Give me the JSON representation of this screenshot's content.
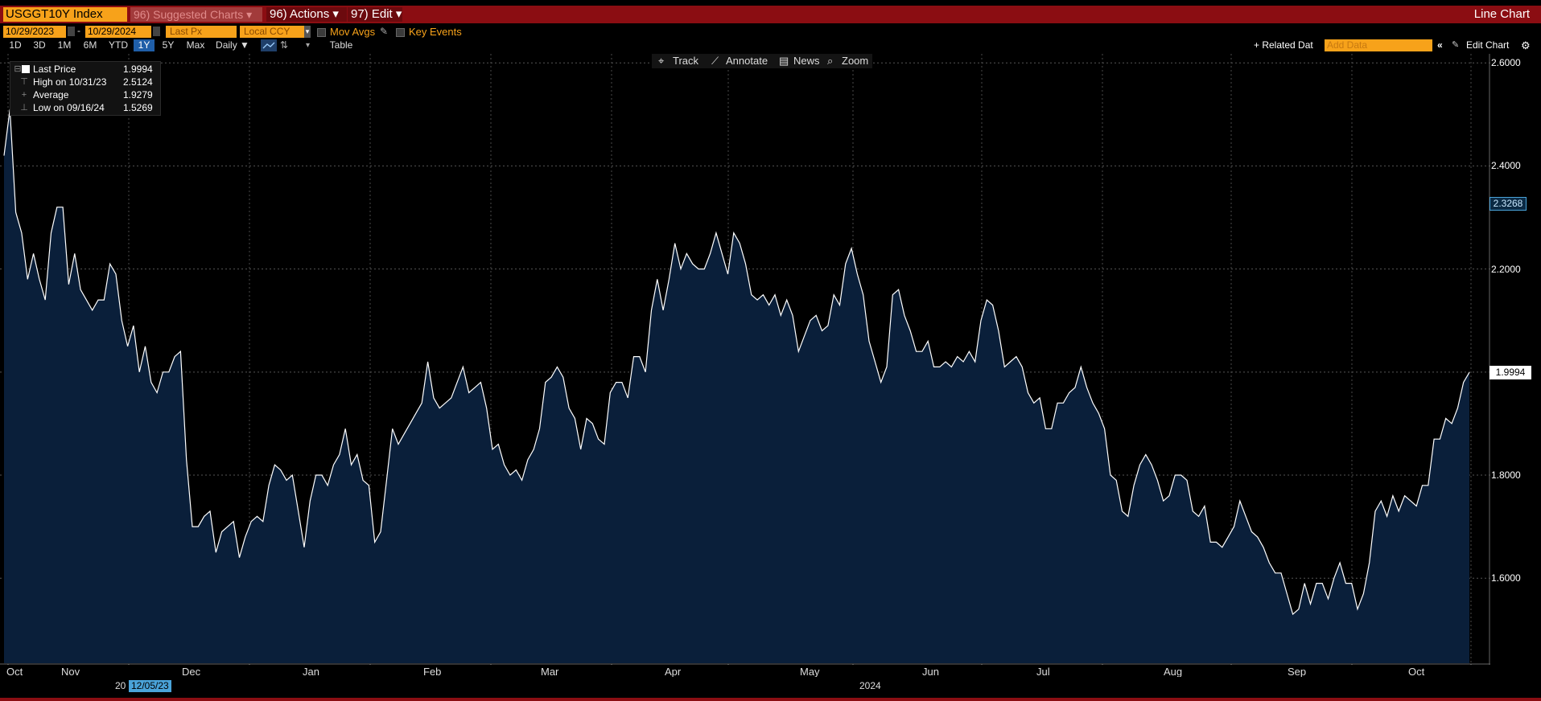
{
  "top_strip_text": "",
  "toolbar": {
    "ticker": "USGGT10Y Index",
    "suggested": "96) Suggested Charts ▾",
    "actions": "96) Actions ▾",
    "edit": "97) Edit ▾",
    "chart_type": "Line Chart",
    "start_date": "10/29/2023",
    "end_date": "10/29/2024",
    "field": "Last Px",
    "currency": "Local CCY",
    "mov_avgs": "Mov Avgs",
    "key_events": "Key Events",
    "ranges": [
      "1D",
      "3D",
      "1M",
      "6M",
      "YTD",
      "1Y",
      "5Y",
      "Max"
    ],
    "selected_range": "1Y",
    "frequency": "Daily ▼",
    "table": "Table",
    "related_data": "+ Related Dat",
    "add_data_placeholder": "Add Data",
    "edit_chart": "Edit Chart"
  },
  "controls": {
    "track": "Track",
    "annotate": "Annotate",
    "news": "News",
    "zoom": "Zoom"
  },
  "legend": {
    "last_label": "Last Price",
    "last_value": "1.9994",
    "high_label": "High on 10/31/23",
    "high_value": "2.5124",
    "avg_label": "Average",
    "avg_value": "1.9279",
    "low_label": "Low on 09/16/24",
    "low_value": "1.5269"
  },
  "colors": {
    "background": "#000000",
    "area_fill": "#0a1f3a",
    "line": "#ffffff",
    "toolbar_red": "#8b0d12",
    "orange": "#f7a21a"
  },
  "bottom": {
    "year_a_prefix": "20",
    "crosshair_date": "12/05/23",
    "year_b": "2024"
  },
  "chart_data": {
    "type": "area",
    "title": "USGGT10Y Index",
    "xlabel": "",
    "ylabel": "",
    "ylim": [
      1.435,
      2.605
    ],
    "yticks": [
      1.6,
      1.8,
      2.0,
      2.2,
      2.4,
      2.6
    ],
    "ytick_labels": [
      "1.6000",
      "1.8000",
      "2.0000",
      "2.2000",
      "2.4000",
      "2.6000"
    ],
    "xtick_labels": [
      "Oct",
      "Nov",
      "Dec",
      "Jan",
      "Feb",
      "Mar",
      "Apr",
      "May",
      "Jun",
      "Jul",
      "Aug",
      "Sep",
      "Oct"
    ],
    "last_value_marker": "1.9994",
    "reference_marker": "2.3268",
    "grid": true,
    "series": [
      {
        "values": [
          2.42,
          2.51,
          2.31,
          2.27,
          2.18,
          2.23,
          2.18,
          2.14,
          2.27,
          2.32,
          2.32,
          2.17,
          2.23,
          2.16,
          2.14,
          2.12,
          2.14,
          2.14,
          2.21,
          2.19,
          2.1,
          2.05,
          2.09,
          2.0,
          2.05,
          1.98,
          1.96,
          2.0,
          2.0,
          2.03,
          2.04,
          1.83,
          1.7,
          1.7,
          1.72,
          1.73,
          1.65,
          1.69,
          1.7,
          1.71,
          1.64,
          1.68,
          1.71,
          1.72,
          1.71,
          1.78,
          1.82,
          1.81,
          1.79,
          1.8,
          1.73,
          1.66,
          1.75,
          1.8,
          1.8,
          1.78,
          1.82,
          1.84,
          1.89,
          1.82,
          1.84,
          1.79,
          1.78,
          1.67,
          1.69,
          1.79,
          1.89,
          1.86,
          1.88,
          1.9,
          1.92,
          1.94,
          2.02,
          1.95,
          1.93,
          1.94,
          1.95,
          1.98,
          2.01,
          1.96,
          1.97,
          1.98,
          1.93,
          1.85,
          1.86,
          1.82,
          1.8,
          1.81,
          1.79,
          1.83,
          1.85,
          1.89,
          1.98,
          1.99,
          2.01,
          1.99,
          1.93,
          1.91,
          1.85,
          1.91,
          1.9,
          1.87,
          1.86,
          1.96,
          1.98,
          1.98,
          1.95,
          2.03,
          2.03,
          2.0,
          2.12,
          2.18,
          2.12,
          2.18,
          2.25,
          2.2,
          2.23,
          2.21,
          2.2,
          2.2,
          2.23,
          2.27,
          2.23,
          2.19,
          2.27,
          2.25,
          2.21,
          2.15,
          2.14,
          2.15,
          2.13,
          2.15,
          2.11,
          2.14,
          2.11,
          2.04,
          2.07,
          2.1,
          2.11,
          2.08,
          2.09,
          2.15,
          2.13,
          2.21,
          2.24,
          2.19,
          2.15,
          2.06,
          2.02,
          1.98,
          2.01,
          2.15,
          2.16,
          2.11,
          2.08,
          2.04,
          2.04,
          2.06,
          2.01,
          2.01,
          2.02,
          2.01,
          2.03,
          2.02,
          2.04,
          2.02,
          2.1,
          2.14,
          2.13,
          2.08,
          2.01,
          2.02,
          2.03,
          2.01,
          1.96,
          1.94,
          1.95,
          1.89,
          1.89,
          1.94,
          1.94,
          1.96,
          1.97,
          2.01,
          1.97,
          1.94,
          1.92,
          1.89,
          1.8,
          1.79,
          1.73,
          1.72,
          1.78,
          1.82,
          1.84,
          1.82,
          1.79,
          1.75,
          1.76,
          1.8,
          1.8,
          1.79,
          1.73,
          1.72,
          1.74,
          1.67,
          1.67,
          1.66,
          1.68,
          1.7,
          1.75,
          1.72,
          1.69,
          1.68,
          1.66,
          1.63,
          1.61,
          1.61,
          1.57,
          1.53,
          1.54,
          1.59,
          1.55,
          1.59,
          1.59,
          1.56,
          1.6,
          1.63,
          1.59,
          1.59,
          1.54,
          1.57,
          1.63,
          1.73,
          1.75,
          1.72,
          1.76,
          1.73,
          1.76,
          1.75,
          1.74,
          1.78,
          1.78,
          1.87,
          1.87,
          1.91,
          1.9,
          1.93,
          1.98,
          1.9994
        ]
      }
    ]
  }
}
